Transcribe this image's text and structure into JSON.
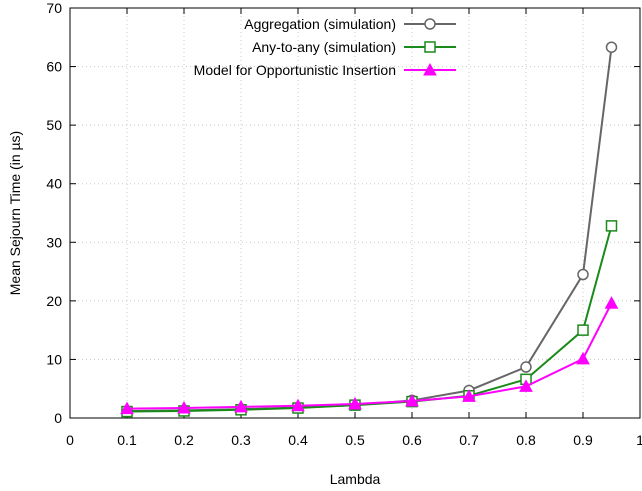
{
  "chart_data": {
    "type": "line",
    "xlabel": "Lambda",
    "ylabel": "Mean Sejourn Time (in µs)",
    "xlim": [
      0,
      1
    ],
    "ylim": [
      0,
      70
    ],
    "xticks": [
      0,
      0.1,
      0.2,
      0.3,
      0.4,
      0.5,
      0.6,
      0.7,
      0.8,
      0.9,
      1
    ],
    "xtick_labels": [
      "0",
      "0.1",
      "0.2",
      "0.3",
      "0.4",
      "0.5",
      "0.6",
      "0.7",
      "0.8",
      "0.9",
      "1"
    ],
    "yticks": [
      0,
      10,
      20,
      30,
      40,
      50,
      60,
      70
    ],
    "ytick_labels": [
      "0",
      "10",
      "20",
      "30",
      "40",
      "50",
      "60",
      "70"
    ],
    "grid": true,
    "legend_position": "top-right",
    "x": [
      0.1,
      0.2,
      0.3,
      0.4,
      0.5,
      0.6,
      0.7,
      0.8,
      0.9,
      0.95
    ],
    "series": [
      {
        "name": "Aggregation (simulation)",
        "marker": "circle",
        "color": "#666666",
        "values": [
          1.2,
          1.3,
          1.5,
          1.8,
          2.2,
          3.0,
          4.7,
          8.7,
          24.5,
          63.3
        ]
      },
      {
        "name": "Any-to-any (simulation)",
        "marker": "square",
        "color": "#1a8a1a",
        "values": [
          1.1,
          1.2,
          1.4,
          1.7,
          2.2,
          2.8,
          3.8,
          6.6,
          15.0,
          32.8
        ]
      },
      {
        "name": "Model for Opportunistic Insertion",
        "marker": "triangle",
        "color": "#ff00ff",
        "values": [
          1.6,
          1.7,
          1.9,
          2.1,
          2.4,
          2.9,
          3.7,
          5.4,
          10.1,
          19.6
        ]
      }
    ]
  }
}
